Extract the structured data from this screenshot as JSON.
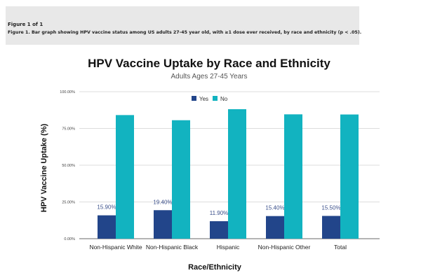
{
  "caption": {
    "figure_count": "Figure 1 of 1",
    "text": "Figure 1. Bar graph showing HPV vaccine status among US adults 27-45 year old, with ≥1 dose ever received, by race and ethnicity (p < .05)."
  },
  "chart_data": {
    "type": "bar",
    "title": "HPV Vaccine Uptake by Race and Ethnicity",
    "subtitle": "Adults Ages 27-45 Years",
    "xlabel": "Race/Ethnicity",
    "ylabel": "HPV Vaccine Uptake (%)",
    "ylim": [
      0,
      100
    ],
    "yticks": [
      "0.00%",
      "25.00%",
      "50.00%",
      "75.00%",
      "100.00%"
    ],
    "grid": true,
    "legend_position": "top-right",
    "categories": [
      "Non-Hispanic White",
      "Non-Hispanic Black",
      "Hispanic",
      "Non-Hispanic Other",
      "Total"
    ],
    "series": [
      {
        "name": "Yes",
        "color": "#22458a",
        "values": [
          15.9,
          19.4,
          11.9,
          15.4,
          15.5
        ],
        "labels": [
          "15.90%",
          "19.40%",
          "11.90%",
          "15.40%",
          "15.50%"
        ]
      },
      {
        "name": "No",
        "color": "#12b3c0",
        "values": [
          84.1,
          80.6,
          88.1,
          84.6,
          84.5
        ]
      }
    ]
  }
}
